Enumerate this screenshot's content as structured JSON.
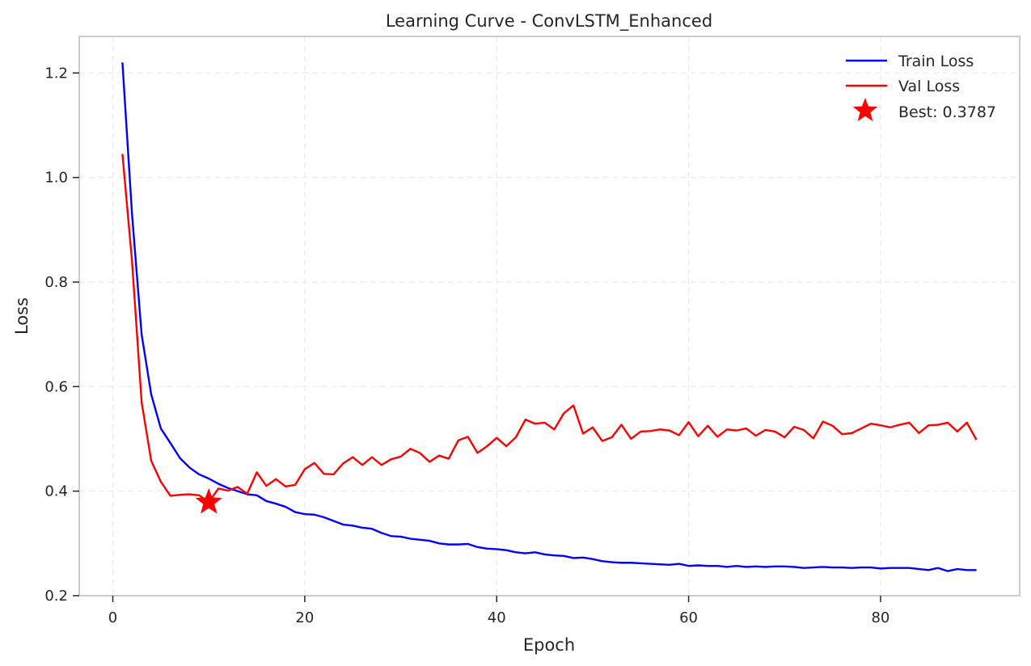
{
  "chart_data": {
    "type": "line",
    "title": "Learning Curve - ConvLSTM_Enhanced",
    "xlabel": "Epoch",
    "ylabel": "Loss",
    "xlim": [
      -3.5,
      94.5
    ],
    "ylim": [
      0.2,
      1.27
    ],
    "xticks": [
      0,
      20,
      40,
      60,
      80
    ],
    "yticks": [
      0.2,
      0.4,
      0.6,
      0.8,
      1.0,
      1.2
    ],
    "grid": true,
    "legend_position": "top-right",
    "series": [
      {
        "name": "Train Loss",
        "color": "#0000ff",
        "x": [
          1,
          2,
          3,
          4,
          5,
          6,
          7,
          8,
          9,
          10,
          11,
          12,
          13,
          14,
          15,
          16,
          17,
          18,
          19,
          20,
          21,
          22,
          23,
          24,
          25,
          26,
          27,
          28,
          29,
          30,
          31,
          32,
          33,
          34,
          35,
          36,
          37,
          38,
          39,
          40,
          41,
          42,
          43,
          44,
          45,
          46,
          47,
          48,
          49,
          50,
          51,
          52,
          53,
          54,
          55,
          56,
          57,
          58,
          59,
          60,
          61,
          62,
          63,
          64,
          65,
          66,
          67,
          68,
          69,
          70,
          71,
          72,
          73,
          74,
          75,
          76,
          77,
          78,
          79,
          80,
          81,
          82,
          83,
          84,
          85,
          86,
          87,
          88,
          89,
          90
        ],
        "y": [
          1.22,
          0.93,
          0.7,
          0.585,
          0.52,
          0.492,
          0.463,
          0.445,
          0.432,
          0.424,
          0.414,
          0.406,
          0.4,
          0.394,
          0.392,
          0.381,
          0.376,
          0.37,
          0.36,
          0.356,
          0.355,
          0.35,
          0.343,
          0.336,
          0.334,
          0.33,
          0.328,
          0.32,
          0.314,
          0.313,
          0.309,
          0.307,
          0.305,
          0.3,
          0.298,
          0.298,
          0.299,
          0.293,
          0.29,
          0.289,
          0.287,
          0.283,
          0.281,
          0.283,
          0.279,
          0.277,
          0.276,
          0.272,
          0.273,
          0.27,
          0.266,
          0.264,
          0.263,
          0.263,
          0.262,
          0.261,
          0.26,
          0.259,
          0.261,
          0.257,
          0.258,
          0.257,
          0.257,
          0.255,
          0.257,
          0.255,
          0.256,
          0.255,
          0.256,
          0.256,
          0.255,
          0.253,
          0.254,
          0.255,
          0.254,
          0.254,
          0.253,
          0.254,
          0.254,
          0.252,
          0.253,
          0.253,
          0.253,
          0.251,
          0.249,
          0.253,
          0.247,
          0.251,
          0.249,
          0.249
        ]
      },
      {
        "name": "Val Loss",
        "color": "#ff0000",
        "x": [
          1,
          2,
          3,
          4,
          5,
          6,
          7,
          8,
          9,
          10,
          11,
          12,
          13,
          14,
          15,
          16,
          17,
          18,
          19,
          20,
          21,
          22,
          23,
          24,
          25,
          26,
          27,
          28,
          29,
          30,
          31,
          32,
          33,
          34,
          35,
          36,
          37,
          38,
          39,
          40,
          41,
          42,
          43,
          44,
          45,
          46,
          47,
          48,
          49,
          50,
          51,
          52,
          53,
          54,
          55,
          56,
          57,
          58,
          59,
          60,
          61,
          62,
          63,
          64,
          65,
          66,
          67,
          68,
          69,
          70,
          71,
          72,
          73,
          74,
          75,
          76,
          77,
          78,
          79,
          80,
          81,
          82,
          83,
          84,
          85,
          86,
          87,
          88,
          89,
          90
        ],
        "y": [
          1.045,
          0.84,
          0.57,
          0.458,
          0.418,
          0.391,
          0.393,
          0.394,
          0.392,
          0.3787,
          0.405,
          0.401,
          0.408,
          0.395,
          0.436,
          0.41,
          0.423,
          0.409,
          0.412,
          0.442,
          0.454,
          0.433,
          0.432,
          0.453,
          0.465,
          0.45,
          0.465,
          0.45,
          0.461,
          0.466,
          0.481,
          0.473,
          0.456,
          0.468,
          0.462,
          0.497,
          0.504,
          0.473,
          0.486,
          0.502,
          0.486,
          0.503,
          0.537,
          0.529,
          0.531,
          0.518,
          0.549,
          0.564,
          0.51,
          0.522,
          0.496,
          0.503,
          0.527,
          0.5,
          0.514,
          0.515,
          0.518,
          0.516,
          0.507,
          0.532,
          0.505,
          0.525,
          0.504,
          0.518,
          0.516,
          0.52,
          0.506,
          0.517,
          0.514,
          0.503,
          0.523,
          0.517,
          0.501,
          0.533,
          0.525,
          0.509,
          0.511,
          0.52,
          0.529,
          0.526,
          0.522,
          0.527,
          0.531,
          0.511,
          0.526,
          0.527,
          0.531,
          0.514,
          0.531,
          0.498
        ]
      }
    ],
    "best_marker": {
      "label": "Best: 0.3787",
      "x": 10,
      "y": 0.3787,
      "color": "#ff0000"
    }
  }
}
